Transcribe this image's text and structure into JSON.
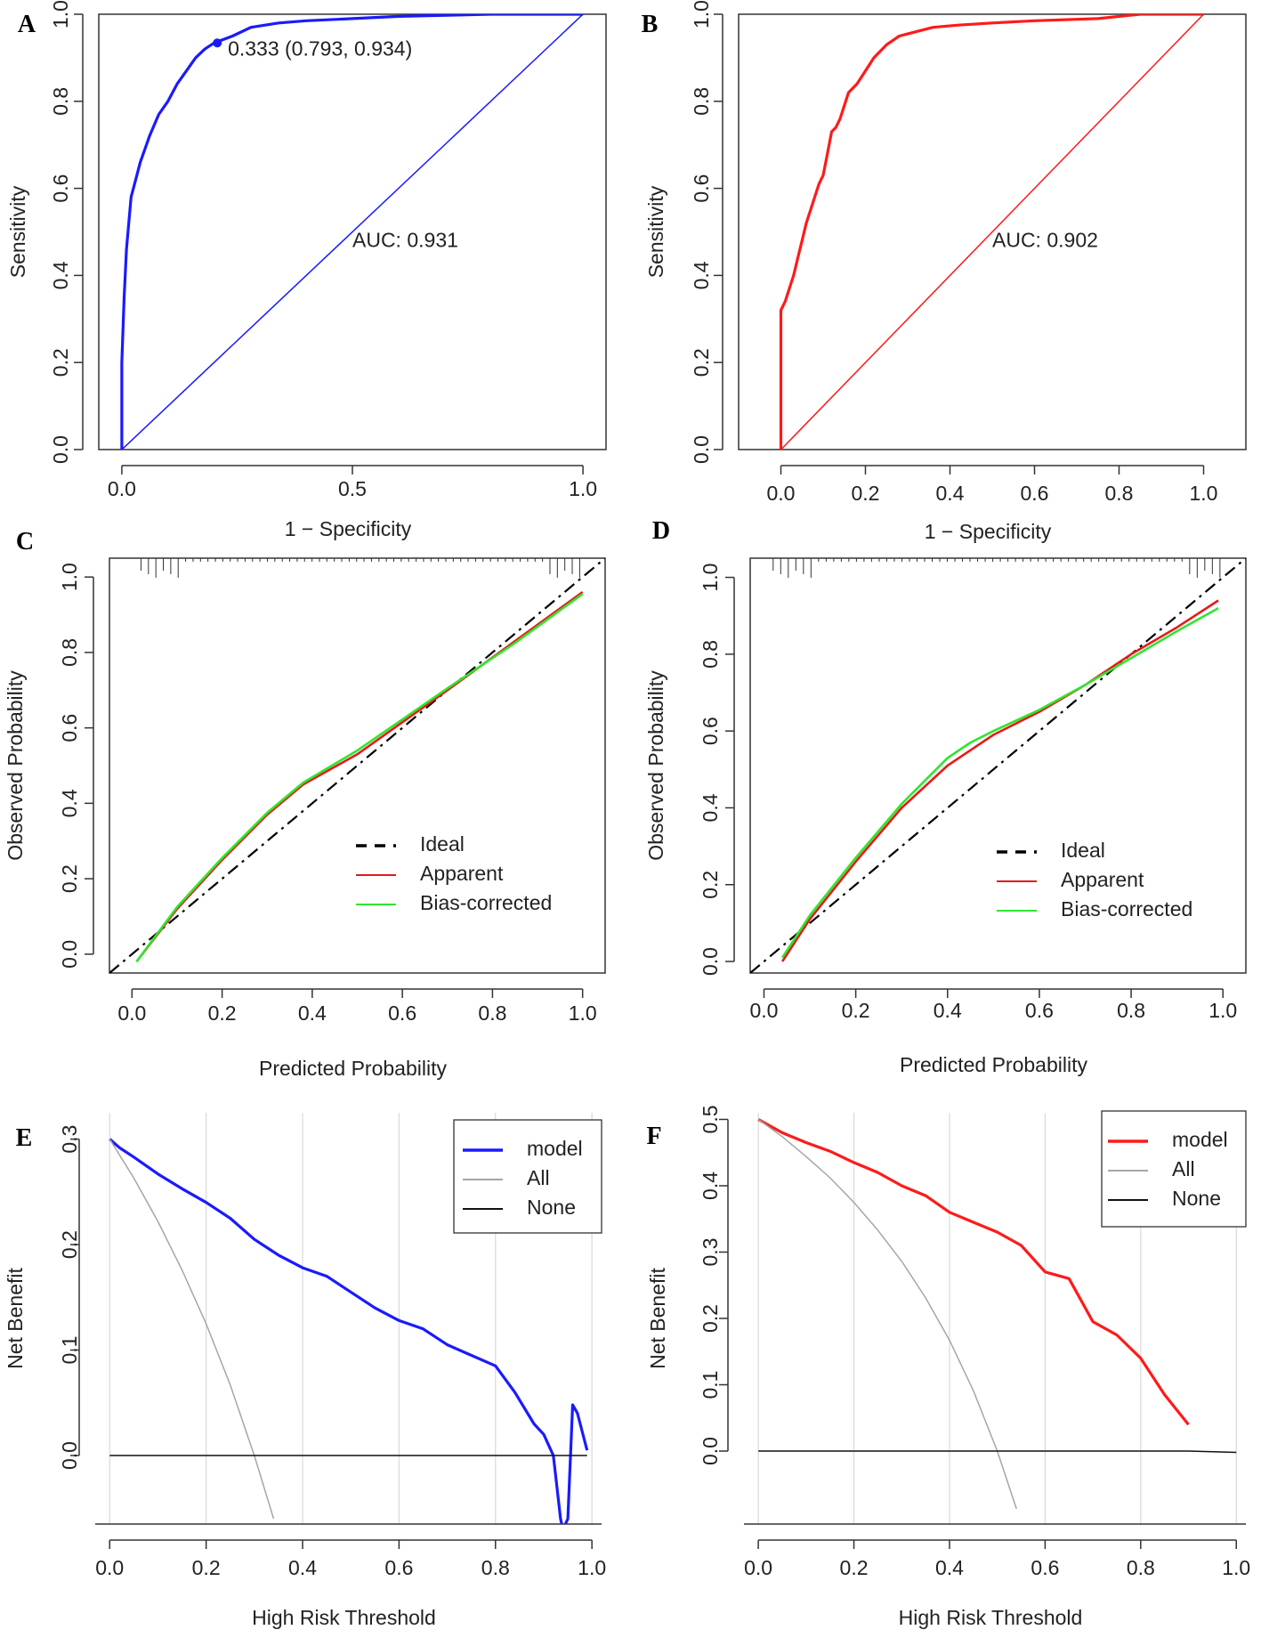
{
  "chart_data": [
    {
      "panel": "A",
      "type": "line",
      "subtype": "roc",
      "xlabel": "1 − Specificity",
      "ylabel": "Sensitivity",
      "xlim": [
        -0.05,
        1.05
      ],
      "ylim": [
        0,
        1
      ],
      "xticks": [
        0,
        0.5,
        1
      ],
      "xticklabels": [
        "0.0",
        "0.5",
        "1.0"
      ],
      "yticks": [
        0,
        0.2,
        0.4,
        0.6,
        0.8,
        1
      ],
      "yticklabels": [
        "0.0",
        "0.2",
        "0.4",
        "0.6",
        "0.8",
        "1.0"
      ],
      "color": "#1a1aff",
      "series": [
        {
          "name": "ROC",
          "x": [
            0,
            0,
            0.005,
            0.01,
            0.015,
            0.02,
            0.03,
            0.04,
            0.05,
            0.06,
            0.08,
            0.1,
            0.12,
            0.14,
            0.16,
            0.18,
            0.2,
            0.24,
            0.28,
            0.34,
            0.4,
            0.5,
            0.6,
            0.8,
            1.0
          ],
          "y": [
            0,
            0.2,
            0.35,
            0.46,
            0.52,
            0.58,
            0.62,
            0.66,
            0.69,
            0.72,
            0.77,
            0.8,
            0.84,
            0.87,
            0.9,
            0.92,
            0.934,
            0.95,
            0.97,
            0.98,
            0.985,
            0.99,
            0.995,
            1.0,
            1.0
          ]
        },
        {
          "name": "reference",
          "x": [
            -0.05,
            1.05
          ],
          "y": [
            -0.05,
            1.05
          ]
        }
      ],
      "point": {
        "x": 0.207,
        "y": 0.934
      },
      "annotations": [
        {
          "text": "0.333 (0.793, 0.934)",
          "x": 0.23,
          "y": 0.905
        },
        {
          "text": "AUC: 0.931",
          "x": 0.5,
          "y": 0.465
        }
      ]
    },
    {
      "panel": "B",
      "type": "line",
      "subtype": "roc",
      "xlabel": "1 − Specificity",
      "ylabel": "Sensitivity",
      "xlim": [
        -0.1,
        1.1
      ],
      "ylim": [
        0,
        1
      ],
      "xticks": [
        0,
        0.2,
        0.4,
        0.6,
        0.8,
        1
      ],
      "xticklabels": [
        "0.0",
        "0.2",
        "0.4",
        "0.6",
        "0.8",
        "1.0"
      ],
      "yticks": [
        0,
        0.2,
        0.4,
        0.6,
        0.8,
        1
      ],
      "yticklabels": [
        "0.0",
        "0.2",
        "0.4",
        "0.6",
        "0.8",
        "1.0"
      ],
      "color": "#ff1a1a",
      "series": [
        {
          "name": "ROC",
          "x": [
            0,
            0,
            0.01,
            0.02,
            0.03,
            0.04,
            0.05,
            0.06,
            0.07,
            0.08,
            0.09,
            0.1,
            0.11,
            0.12,
            0.13,
            0.14,
            0.16,
            0.18,
            0.2,
            0.22,
            0.25,
            0.28,
            0.32,
            0.36,
            0.42,
            0.5,
            0.6,
            0.75,
            0.85,
            1.0
          ],
          "y": [
            0,
            0.32,
            0.34,
            0.37,
            0.4,
            0.44,
            0.48,
            0.52,
            0.55,
            0.58,
            0.61,
            0.63,
            0.68,
            0.73,
            0.74,
            0.76,
            0.82,
            0.84,
            0.87,
            0.9,
            0.93,
            0.95,
            0.96,
            0.97,
            0.975,
            0.98,
            0.985,
            0.99,
            1.0,
            1.0
          ]
        },
        {
          "name": "reference",
          "x": [
            -0.05,
            1.05
          ],
          "y": [
            -0.05,
            1.05
          ]
        }
      ],
      "annotations": [
        {
          "text": "AUC: 0.902",
          "x": 0.5,
          "y": 0.465
        }
      ]
    },
    {
      "panel": "C",
      "type": "line",
      "subtype": "calibration",
      "xlabel": "Predicted Probability",
      "ylabel": "Observed Probability",
      "xlim": [
        -0.05,
        1.05
      ],
      "ylim": [
        -0.05,
        1.05
      ],
      "xticks": [
        0,
        0.2,
        0.4,
        0.6,
        0.8,
        1
      ],
      "xticklabels": [
        "0.0",
        "0.2",
        "0.4",
        "0.6",
        "0.8",
        "1.0"
      ],
      "yticks": [
        0,
        0.2,
        0.4,
        0.6,
        0.8,
        1
      ],
      "yticklabels": [
        "0.0",
        "0.2",
        "0.4",
        "0.6",
        "0.8",
        "1.0"
      ],
      "series": [
        {
          "name": "Ideal",
          "x": [
            -0.05,
            1.05
          ],
          "y": [
            -0.05,
            1.05
          ]
        },
        {
          "name": "Apparent",
          "x": [
            0.01,
            0.1,
            0.2,
            0.3,
            0.38,
            0.5,
            0.7,
            0.85,
            1.0
          ],
          "y": [
            -0.02,
            0.12,
            0.25,
            0.37,
            0.45,
            0.53,
            0.7,
            0.83,
            0.96
          ]
        },
        {
          "name": "Bias-corrected",
          "x": [
            0.01,
            0.1,
            0.2,
            0.3,
            0.38,
            0.5,
            0.7,
            0.85,
            1.0
          ],
          "y": [
            -0.02,
            0.125,
            0.255,
            0.375,
            0.455,
            0.54,
            0.705,
            0.825,
            0.955
          ]
        }
      ],
      "legend": {
        "position": "bottom-right",
        "entries": [
          "Ideal",
          "Apparent",
          "Bias-corrected"
        ]
      }
    },
    {
      "panel": "D",
      "type": "line",
      "subtype": "calibration",
      "xlabel": "Predicted Probability",
      "ylabel": "Observed Probability",
      "xlim": [
        -0.03,
        1.05
      ],
      "ylim": [
        -0.03,
        1.05
      ],
      "xticks": [
        0,
        0.2,
        0.4,
        0.6,
        0.8,
        1
      ],
      "xticklabels": [
        "0.0",
        "0.2",
        "0.4",
        "0.6",
        "0.8",
        "1.0"
      ],
      "yticks": [
        0,
        0.2,
        0.4,
        0.6,
        0.8,
        1
      ],
      "yticklabels": [
        "0.0",
        "0.2",
        "0.4",
        "0.6",
        "0.8",
        "1.0"
      ],
      "series": [
        {
          "name": "Ideal",
          "x": [
            -0.03,
            1.05
          ],
          "y": [
            -0.03,
            1.05
          ]
        },
        {
          "name": "Apparent",
          "x": [
            0.04,
            0.1,
            0.2,
            0.3,
            0.4,
            0.45,
            0.5,
            0.6,
            0.7,
            0.8,
            0.9,
            0.99
          ],
          "y": [
            0.0,
            0.11,
            0.26,
            0.4,
            0.51,
            0.55,
            0.59,
            0.65,
            0.72,
            0.8,
            0.87,
            0.94
          ]
        },
        {
          "name": "Bias-corrected",
          "x": [
            0.04,
            0.1,
            0.2,
            0.3,
            0.4,
            0.45,
            0.5,
            0.6,
            0.7,
            0.8,
            0.9,
            0.99
          ],
          "y": [
            0.01,
            0.12,
            0.27,
            0.41,
            0.53,
            0.57,
            0.6,
            0.655,
            0.72,
            0.79,
            0.86,
            0.92
          ]
        }
      ],
      "legend": {
        "position": "bottom-right",
        "entries": [
          "Ideal",
          "Apparent",
          "Bias-corrected"
        ]
      }
    },
    {
      "panel": "E",
      "type": "line",
      "subtype": "decision-curve",
      "xlabel": "High Risk Threshold",
      "ylabel": "Net Benefit",
      "xlim": [
        -0.03,
        1.02
      ],
      "ylim": [
        -0.065,
        0.325
      ],
      "xticks": [
        0,
        0.2,
        0.4,
        0.6,
        0.8,
        1
      ],
      "xticklabels": [
        "0.0",
        "0.2",
        "0.4",
        "0.6",
        "0.8",
        "1.0"
      ],
      "yticks": [
        0,
        0.1,
        0.2,
        0.3
      ],
      "yticklabels": [
        "0.0",
        "0.1",
        "0.2",
        "0.3"
      ],
      "color": "#1a1aff",
      "series": [
        {
          "name": "model",
          "x": [
            0,
            0.02,
            0.05,
            0.1,
            0.15,
            0.2,
            0.25,
            0.3,
            0.35,
            0.4,
            0.45,
            0.5,
            0.55,
            0.6,
            0.65,
            0.7,
            0.75,
            0.8,
            0.84,
            0.88,
            0.9,
            0.92,
            0.935,
            0.94,
            0.95,
            0.96,
            0.97,
            0.99
          ],
          "y": [
            0.3,
            0.292,
            0.283,
            0.267,
            0.253,
            0.24,
            0.225,
            0.205,
            0.19,
            0.178,
            0.17,
            0.155,
            0.14,
            0.128,
            0.12,
            0.105,
            0.095,
            0.085,
            0.06,
            0.03,
            0.02,
            0.0,
            -0.06,
            -0.07,
            -0.06,
            0.048,
            0.04,
            0.005
          ]
        },
        {
          "name": "All",
          "x": [
            0,
            0.05,
            0.1,
            0.15,
            0.2,
            0.25,
            0.3,
            0.34
          ],
          "y": [
            0.3,
            0.263,
            0.222,
            0.176,
            0.125,
            0.067,
            0.0,
            -0.06
          ]
        },
        {
          "name": "None",
          "x": [
            0,
            0.99
          ],
          "y": [
            0,
            0
          ]
        }
      ],
      "legend": {
        "position": "top-right",
        "entries": [
          "model",
          "All",
          "None"
        ]
      }
    },
    {
      "panel": "F",
      "type": "line",
      "subtype": "decision-curve",
      "xlabel": "High Risk Threshold",
      "ylabel": "Net Benefit",
      "xlim": [
        -0.03,
        1.02
      ],
      "ylim": [
        -0.11,
        0.51
      ],
      "xticks": [
        0,
        0.2,
        0.4,
        0.6,
        0.8,
        1
      ],
      "xticklabels": [
        "0.0",
        "0.2",
        "0.4",
        "0.6",
        "0.8",
        "1.0"
      ],
      "yticks": [
        0,
        0.1,
        0.2,
        0.3,
        0.4,
        0.5
      ],
      "yticklabels": [
        "0.0",
        "0.1",
        "0.2",
        "0.3",
        "0.4",
        "0.5"
      ],
      "color": "#ff1a1a",
      "series": [
        {
          "name": "model",
          "x": [
            0,
            0.05,
            0.1,
            0.15,
            0.2,
            0.25,
            0.3,
            0.35,
            0.4,
            0.45,
            0.5,
            0.55,
            0.6,
            0.65,
            0.7,
            0.75,
            0.8,
            0.85,
            0.9
          ],
          "y": [
            0.5,
            0.48,
            0.465,
            0.452,
            0.435,
            0.42,
            0.4,
            0.385,
            0.36,
            0.345,
            0.33,
            0.31,
            0.27,
            0.26,
            0.195,
            0.175,
            0.14,
            0.085,
            0.04
          ]
        },
        {
          "name": "All",
          "x": [
            0,
            0.05,
            0.1,
            0.15,
            0.2,
            0.25,
            0.3,
            0.35,
            0.4,
            0.45,
            0.5,
            0.54
          ],
          "y": [
            0.5,
            0.474,
            0.444,
            0.412,
            0.375,
            0.333,
            0.286,
            0.231,
            0.167,
            0.091,
            0.0,
            -0.087
          ]
        },
        {
          "name": "None",
          "x": [
            0,
            0.9,
            1.0
          ],
          "y": [
            0,
            0,
            -0.002
          ]
        }
      ],
      "legend": {
        "position": "top-right",
        "entries": [
          "model",
          "All",
          "None"
        ]
      }
    }
  ]
}
